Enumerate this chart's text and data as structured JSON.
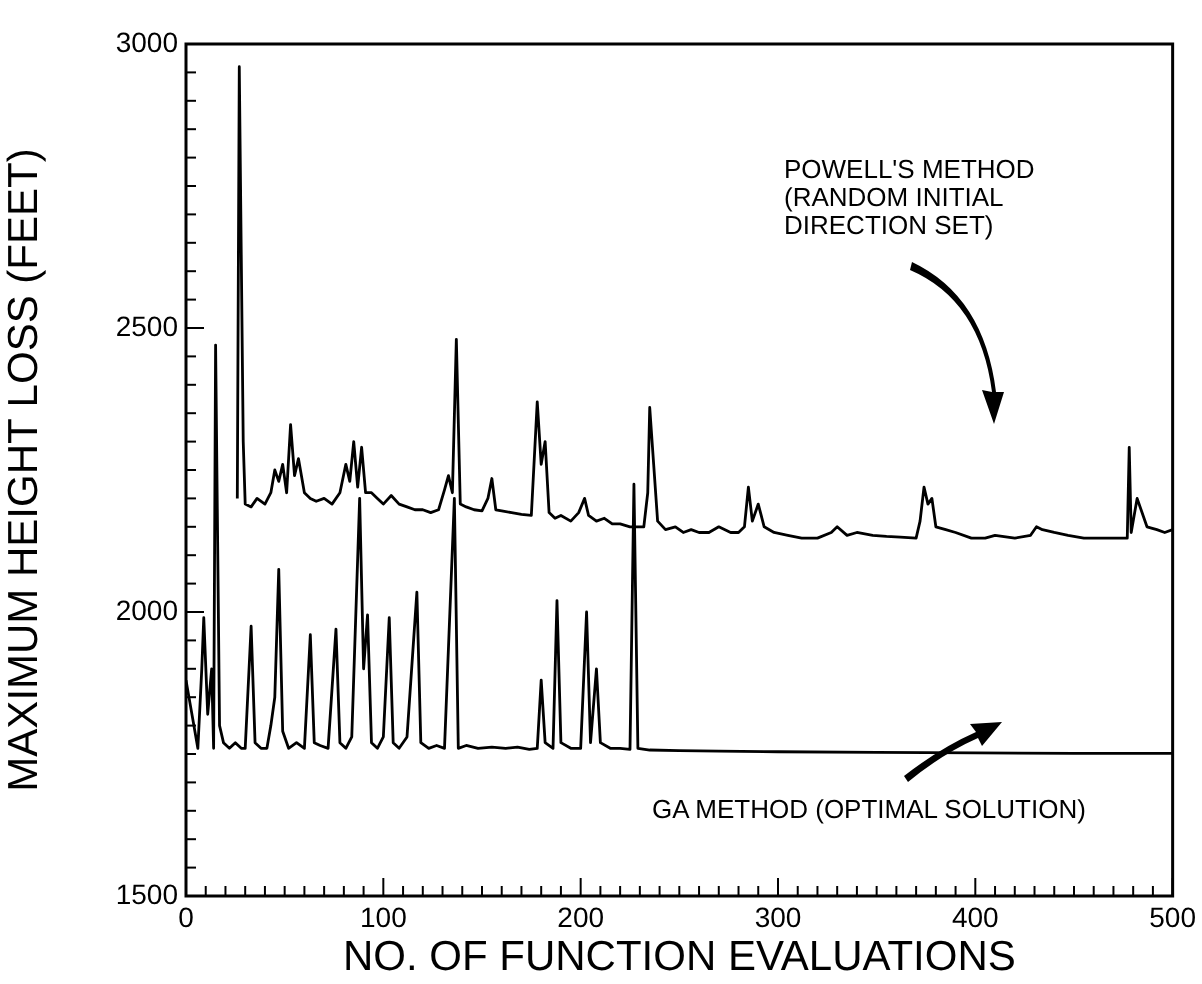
{
  "chart_data": {
    "type": "line",
    "xlabel": "NO. OF FUNCTION EVALUATIONS",
    "ylabel": "MAXIMUM HEIGHT LOSS (FEET)",
    "xlim": [
      0,
      500
    ],
    "ylim": [
      1500,
      3000
    ],
    "xticks": [
      0,
      {
        "value": 10,
        "label": null
      },
      {
        "value": 20,
        "label": null
      },
      {
        "value": 30,
        "label": null
      },
      {
        "value": 40,
        "label": null
      },
      {
        "value": 50,
        "label": null
      },
      {
        "value": 60,
        "label": null
      },
      {
        "value": 70,
        "label": null
      },
      {
        "value": 80,
        "label": null
      },
      {
        "value": 90,
        "label": null
      },
      100,
      {
        "value": 110,
        "label": null
      },
      {
        "value": 120,
        "label": null
      },
      {
        "value": 130,
        "label": null
      },
      {
        "value": 140,
        "label": null
      },
      {
        "value": 150,
        "label": null
      },
      {
        "value": 160,
        "label": null
      },
      {
        "value": 170,
        "label": null
      },
      {
        "value": 180,
        "label": null
      },
      {
        "value": 190,
        "label": null
      },
      200,
      {
        "value": 210,
        "label": null
      },
      {
        "value": 220,
        "label": null
      },
      {
        "value": 230,
        "label": null
      },
      {
        "value": 240,
        "label": null
      },
      {
        "value": 250,
        "label": null
      },
      {
        "value": 260,
        "label": null
      },
      {
        "value": 270,
        "label": null
      },
      {
        "value": 280,
        "label": null
      },
      {
        "value": 290,
        "label": null
      },
      300,
      {
        "value": 310,
        "label": null
      },
      {
        "value": 320,
        "label": null
      },
      {
        "value": 330,
        "label": null
      },
      {
        "value": 340,
        "label": null
      },
      {
        "value": 350,
        "label": null
      },
      {
        "value": 360,
        "label": null
      },
      {
        "value": 370,
        "label": null
      },
      {
        "value": 380,
        "label": null
      },
      {
        "value": 390,
        "label": null
      },
      400,
      {
        "value": 410,
        "label": null
      },
      {
        "value": 420,
        "label": null
      },
      {
        "value": 430,
        "label": null
      },
      {
        "value": 440,
        "label": null
      },
      {
        "value": 450,
        "label": null
      },
      {
        "value": 460,
        "label": null
      },
      {
        "value": 470,
        "label": null
      },
      {
        "value": 480,
        "label": null
      },
      {
        "value": 490,
        "label": null
      },
      500
    ],
    "yticks": [
      1500,
      {
        "value": 1550,
        "label": null
      },
      {
        "value": 1600,
        "label": null
      },
      {
        "value": 1650,
        "label": null
      },
      {
        "value": 1700,
        "label": null
      },
      {
        "value": 1750,
        "label": null
      },
      {
        "value": 1800,
        "label": null
      },
      {
        "value": 1850,
        "label": null
      },
      {
        "value": 1900,
        "label": null
      },
      {
        "value": 1950,
        "label": null
      },
      2000,
      {
        "value": 2050,
        "label": null
      },
      {
        "value": 2100,
        "label": null
      },
      {
        "value": 2150,
        "label": null
      },
      {
        "value": 2200,
        "label": null
      },
      {
        "value": 2250,
        "label": null
      },
      {
        "value": 2300,
        "label": null
      },
      {
        "value": 2350,
        "label": null
      },
      {
        "value": 2400,
        "label": null
      },
      {
        "value": 2450,
        "label": null
      },
      2500,
      {
        "value": 2550,
        "label": null
      },
      {
        "value": 2600,
        "label": null
      },
      {
        "value": 2650,
        "label": null
      },
      {
        "value": 2700,
        "label": null
      },
      {
        "value": 2750,
        "label": null
      },
      {
        "value": 2800,
        "label": null
      },
      {
        "value": 2850,
        "label": null
      },
      {
        "value": 2900,
        "label": null
      },
      {
        "value": 2950,
        "label": null
      },
      3000
    ],
    "grid": false,
    "legend": false,
    "annotations": [
      "POWELL'S METHOD\n(RANDOM INITIAL\nDIRECTION SET)",
      "GA METHOD (OPTIMAL SOLUTION)"
    ],
    "series": [
      {
        "color": "#000000",
        "x": [
          26,
          27,
          29,
          30,
          33,
          36,
          40,
          43,
          45,
          47,
          49,
          51,
          53,
          55,
          57,
          60,
          63,
          66,
          70,
          74,
          78,
          81,
          83,
          85,
          87,
          89,
          91,
          94,
          97,
          100,
          104,
          108,
          112,
          116,
          120,
          124,
          128,
          131,
          133,
          135,
          137,
          139,
          142,
          146,
          150,
          153,
          155,
          157,
          160,
          165,
          170,
          175,
          178,
          180,
          182,
          184,
          187,
          190,
          195,
          199,
          202,
          204,
          208,
          212,
          216,
          220,
          225,
          228,
          232,
          234,
          235,
          237,
          239,
          243,
          248,
          252,
          256,
          260,
          265,
          270,
          276,
          280,
          283,
          285,
          287,
          290,
          293,
          298,
          305,
          312,
          320,
          327,
          330,
          335,
          340,
          348,
          355,
          362,
          370,
          372,
          374,
          376,
          378,
          380,
          385,
          390,
          398,
          405,
          410,
          420,
          428,
          431,
          434,
          440,
          447,
          455,
          465,
          477,
          478,
          479,
          482,
          484,
          487,
          492,
          496,
          500
        ],
        "values": [
          2200,
          2960,
          2300,
          2190,
          2185,
          2200,
          2190,
          2210,
          2250,
          2230,
          2260,
          2210,
          2330,
          2240,
          2270,
          2210,
          2200,
          2195,
          2200,
          2190,
          2210,
          2260,
          2230,
          2300,
          2220,
          2290,
          2210,
          2210,
          2200,
          2190,
          2205,
          2190,
          2185,
          2180,
          2180,
          2175,
          2180,
          2215,
          2240,
          2210,
          2480,
          2190,
          2185,
          2180,
          2178,
          2200,
          2235,
          2180,
          2178,
          2175,
          2172,
          2170,
          2370,
          2260,
          2300,
          2175,
          2165,
          2170,
          2160,
          2175,
          2200,
          2170,
          2160,
          2165,
          2155,
          2155,
          2150,
          2150,
          2150,
          2210,
          2360,
          2260,
          2160,
          2145,
          2150,
          2140,
          2145,
          2140,
          2140,
          2150,
          2140,
          2140,
          2150,
          2220,
          2160,
          2190,
          2150,
          2140,
          2135,
          2130,
          2130,
          2140,
          2150,
          2135,
          2140,
          2135,
          2133,
          2132,
          2130,
          2160,
          2220,
          2190,
          2200,
          2150,
          2145,
          2140,
          2130,
          2130,
          2135,
          2130,
          2135,
          2150,
          2145,
          2140,
          2135,
          2130,
          2130,
          2130,
          2290,
          2140,
          2200,
          2180,
          2150,
          2145,
          2140,
          2145
        ]
      },
      {
        "color": "#000000",
        "x": [
          0,
          2,
          4,
          6,
          8,
          9,
          11,
          13,
          14,
          15,
          17,
          19,
          22,
          25,
          28,
          30,
          33,
          35,
          38,
          41,
          43,
          45,
          47,
          49,
          52,
          56,
          60,
          63,
          65,
          68,
          72,
          76,
          78,
          81,
          84,
          88,
          90,
          92,
          94,
          97,
          100,
          103,
          105,
          108,
          112,
          117,
          119,
          123,
          127,
          131,
          136,
          138,
          142,
          148,
          155,
          162,
          168,
          174,
          178,
          180,
          182,
          186,
          188,
          190,
          195,
          200,
          203,
          205,
          208,
          210,
          215,
          220,
          225,
          227,
          229,
          235,
          250,
          270,
          300,
          350,
          400,
          450,
          500
        ],
        "values": [
          1880,
          1840,
          1800,
          1760,
          1900,
          1990,
          1820,
          1900,
          1760,
          2470,
          1800,
          1770,
          1760,
          1770,
          1760,
          1760,
          1975,
          1770,
          1760,
          1760,
          1800,
          1850,
          2075,
          1790,
          1760,
          1770,
          1760,
          1960,
          1770,
          1765,
          1760,
          1970,
          1770,
          1760,
          1780,
          2200,
          1900,
          1995,
          1770,
          1760,
          1780,
          1990,
          1770,
          1760,
          1780,
          2035,
          1770,
          1760,
          1765,
          1760,
          2200,
          1760,
          1765,
          1760,
          1762,
          1760,
          1762,
          1758,
          1760,
          1880,
          1770,
          1760,
          2020,
          1770,
          1760,
          1760,
          2000,
          1770,
          1900,
          1770,
          1760,
          1760,
          1758,
          2225,
          1760,
          1757,
          1756,
          1755,
          1754,
          1753,
          1752,
          1751,
          1751
        ]
      }
    ]
  }
}
